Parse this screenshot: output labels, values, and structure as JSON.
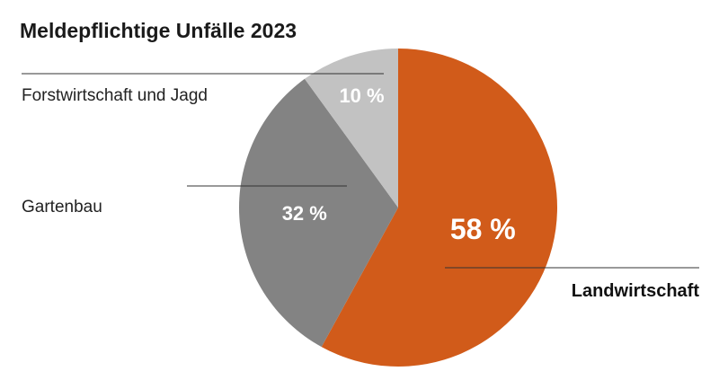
{
  "chart_data": {
    "type": "pie",
    "title": "Meldepflichtige Unfälle 2023",
    "unit": "%",
    "slices": [
      {
        "label": "Landwirtschaft",
        "value": 58,
        "value_label": "58 %",
        "color": "#D15B1A",
        "label_weight": "bold"
      },
      {
        "label": "Gartenbau",
        "value": 32,
        "value_label": "32 %",
        "color": "#838383",
        "label_weight": "normal"
      },
      {
        "label": "Forstwirtschaft und Jagd",
        "value": 10,
        "value_label": "10 %",
        "color": "#C2C2C2",
        "label_weight": "normal"
      }
    ],
    "start_angle": "12 o'clock",
    "direction": "clockwise",
    "legend": "leader-lines"
  }
}
